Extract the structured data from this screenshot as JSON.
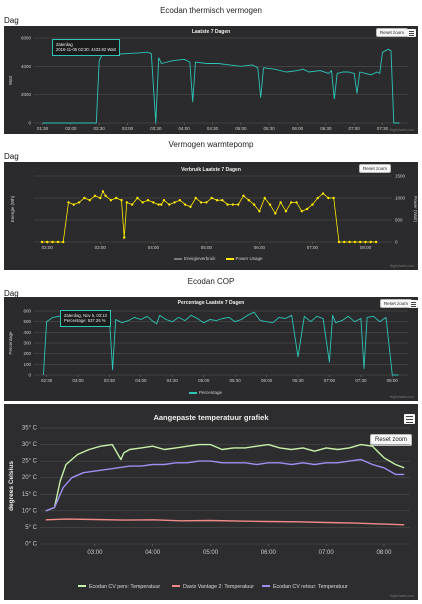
{
  "charts": {
    "c1": {
      "heading": "Ecodan thermisch vermogen",
      "dag": "Dag",
      "title": "Laatste 7 Dagen",
      "reset": "Reset zoom",
      "ylabel": "Watt",
      "tooltip_line1": "Zaterdag",
      "tooltip_line2": "2016-11-05 02:30: 4433.92 Watt",
      "credits": "Highcharts.com"
    },
    "c2": {
      "heading": "Vermogen warmtepomp",
      "dag": "Dag",
      "title": "Verbruik Laatste 7 Dagen",
      "reset": "Reset zoom",
      "ylabel_left": "Energie (Wh)",
      "ylabel_right": "Power (Watt)",
      "legend1": "Energieverbruik",
      "legend2": "Power Usage",
      "credits": "Highcharts.com"
    },
    "c3": {
      "heading": "Ecodan COP",
      "dag": "Dag",
      "title": "Percentage Laatste 7 Dagen",
      "reset": "Reset zoom",
      "ylabel": "Percentage",
      "tooltip_line1": "Zaterdag, Nov 5, 03:13",
      "tooltip_line2": "Percentage: 537.26 %",
      "legend1": "Percentage",
      "credits": "Highcharts.com"
    },
    "c4": {
      "title": "Aangepaste temperatuur grafiek",
      "reset": "Reset zoom",
      "ylabel": "degrees Celsius",
      "credits": "Highcharts.com"
    }
  },
  "chart_data": [
    {
      "type": "line",
      "title": "Laatste 7 Dagen",
      "ylabel": "Watt",
      "x_ticks": [
        "01:30",
        "02:00",
        "02:30",
        "03:00",
        "03:30",
        "04:00",
        "04:30",
        "05:00",
        "05:30",
        "06:00",
        "06:30",
        "07:00",
        "07:30"
      ],
      "y_ticks": [
        0,
        2000,
        4000,
        6000
      ],
      "ylim": [
        0,
        6000
      ],
      "color": "#2ec4b6",
      "series": [
        {
          "x": [
            1.5,
            2.45,
            2.5,
            2.55,
            3.0,
            3.2,
            3.35,
            3.42,
            3.5,
            3.55,
            3.6,
            3.8,
            4.0,
            4.1,
            4.15,
            4.2,
            4.4,
            4.6,
            4.8,
            5.0,
            5.2,
            5.3,
            5.35,
            5.4,
            5.6,
            5.8,
            6.0,
            6.1,
            6.2,
            6.4,
            6.55,
            6.6,
            6.65,
            6.7,
            6.8,
            6.9,
            7.0,
            7.05,
            7.1,
            7.2,
            7.3,
            7.4,
            7.45,
            7.5,
            7.6,
            7.65,
            7.7,
            7.8
          ],
          "values": [
            0,
            0,
            4400,
            4800,
            4900,
            4950,
            5000,
            4900,
            0,
            4600,
            4200,
            4400,
            4500,
            4300,
            1500,
            4300,
            4200,
            4200,
            4100,
            4000,
            4100,
            3900,
            1800,
            3900,
            3800,
            3600,
            3700,
            3800,
            3600,
            3700,
            3500,
            3700,
            1700,
            3500,
            3600,
            3600,
            3500,
            2100,
            3600,
            3500,
            3400,
            3600,
            3500,
            5000,
            5200,
            5100,
            0,
            0
          ]
        }
      ]
    },
    {
      "type": "line",
      "title": "Verbruik Laatste 7 Dagen",
      "ylabel_left": "Energie (Wh)",
      "ylabel_right": "Power (Watt)",
      "x_ticks": [
        "02:00",
        "03:00",
        "04:00",
        "05:00",
        "06:00",
        "07:00",
        "08:00"
      ],
      "y_ticks_right": [
        0,
        500,
        1000,
        1500
      ],
      "ylim": [
        0,
        1500
      ],
      "color": "#ffeb00",
      "series": [
        {
          "name": "Power Usage",
          "x": [
            1.9,
            2.0,
            2.1,
            2.2,
            2.3,
            2.4,
            2.5,
            2.6,
            2.7,
            2.8,
            2.9,
            3.0,
            3.05,
            3.1,
            3.2,
            3.3,
            3.4,
            3.45,
            3.5,
            3.6,
            3.7,
            3.8,
            3.9,
            4.0,
            4.1,
            4.15,
            4.2,
            4.3,
            4.4,
            4.5,
            4.6,
            4.7,
            4.8,
            4.9,
            5.0,
            5.1,
            5.2,
            5.3,
            5.4,
            5.5,
            5.6,
            5.7,
            5.8,
            5.9,
            6.0,
            6.1,
            6.2,
            6.3,
            6.4,
            6.5,
            6.6,
            6.7,
            6.8,
            6.9,
            7.0,
            7.1,
            7.2,
            7.3,
            7.4,
            7.5,
            7.6,
            7.7,
            7.8,
            7.9,
            8.0,
            8.1,
            8.2
          ],
          "values": [
            0,
            0,
            0,
            0,
            0,
            900,
            850,
            900,
            1000,
            950,
            1050,
            1000,
            1150,
            1050,
            950,
            1000,
            950,
            100,
            900,
            850,
            1000,
            900,
            950,
            900,
            850,
            850,
            950,
            850,
            900,
            950,
            850,
            800,
            1000,
            900,
            900,
            1000,
            950,
            950,
            850,
            850,
            850,
            1050,
            950,
            850,
            700,
            1000,
            850,
            650,
            900,
            700,
            900,
            900,
            700,
            750,
            850,
            1000,
            1100,
            1000,
            1000,
            0,
            0,
            0,
            0,
            0,
            0,
            0,
            0
          ]
        }
      ]
    },
    {
      "type": "line",
      "title": "Percentage Laatste 7 Dagen",
      "ylabel": "Percentage",
      "x_ticks": [
        "02:30",
        "03:00",
        "03:30",
        "04:00",
        "04:30",
        "05:00",
        "05:30",
        "06:00",
        "06:30",
        "07:00",
        "07:30",
        "08:00"
      ],
      "y_ticks": [
        0,
        100,
        200,
        300,
        400,
        500,
        600
      ],
      "ylim": [
        0,
        600
      ],
      "color": "#2ec4b6",
      "series": [
        {
          "name": "Percentage",
          "x": [
            2.45,
            2.5,
            2.6,
            2.7,
            2.8,
            2.9,
            3.0,
            3.1,
            3.2,
            3.25,
            3.3,
            3.4,
            3.5,
            3.55,
            3.6,
            3.7,
            3.8,
            3.9,
            4.0,
            4.1,
            4.2,
            4.25,
            4.3,
            4.4,
            4.5,
            4.6,
            4.7,
            4.8,
            4.9,
            5.0,
            5.1,
            5.2,
            5.3,
            5.4,
            5.5,
            5.6,
            5.7,
            5.8,
            5.9,
            6.0,
            6.1,
            6.2,
            6.3,
            6.4,
            6.5,
            6.6,
            6.7,
            6.8,
            6.9,
            7.0,
            7.05,
            7.1,
            7.2,
            7.3,
            7.4,
            7.5,
            7.55,
            7.6,
            7.7,
            7.8,
            7.9,
            8.0,
            8.1
          ],
          "values": [
            0,
            500,
            540,
            550,
            560,
            560,
            540,
            550,
            520,
            480,
            560,
            530,
            540,
            50,
            520,
            490,
            510,
            540,
            520,
            550,
            500,
            480,
            560,
            520,
            500,
            540,
            510,
            560,
            530,
            490,
            520,
            510,
            530,
            540,
            500,
            520,
            560,
            590,
            510,
            500,
            490,
            540,
            530,
            560,
            170,
            550,
            500,
            550,
            530,
            120,
            560,
            490,
            510,
            550,
            500,
            530,
            60,
            540,
            550,
            500,
            540,
            0,
            0
          ]
        }
      ]
    },
    {
      "type": "line",
      "title": "Aangepaste temperatuur grafiek",
      "ylabel": "degrees Celsius",
      "x_ticks": [
        "03:00",
        "04:00",
        "05:00",
        "06:00",
        "07:00",
        "08:00"
      ],
      "y_ticks": [
        "0° C",
        "5° C",
        "10° C",
        "15° C",
        "20° C",
        "25° C",
        "30° C",
        "35° C"
      ],
      "ylim": [
        0,
        35
      ],
      "series": [
        {
          "name": "Ecodan CV pers: Temperatuur",
          "color": "#c8f0a8",
          "x": [
            2.15,
            2.3,
            2.4,
            2.5,
            2.7,
            2.9,
            3.1,
            3.3,
            3.45,
            3.5,
            3.6,
            3.8,
            4.0,
            4.2,
            4.4,
            4.6,
            4.8,
            5.0,
            5.2,
            5.4,
            5.6,
            5.8,
            6.0,
            6.2,
            6.4,
            6.6,
            6.8,
            7.0,
            7.2,
            7.4,
            7.6,
            7.8,
            8.0,
            8.2,
            8.35
          ],
          "values": [
            10,
            11,
            19,
            24,
            27,
            28.5,
            29.5,
            30,
            25.5,
            27.5,
            28.5,
            29,
            29.5,
            28.5,
            29,
            29.5,
            30,
            30,
            28.5,
            29,
            29,
            29.5,
            30,
            29,
            28.5,
            29,
            28,
            29,
            28.5,
            29,
            30,
            29.5,
            26,
            24,
            23
          ]
        },
        {
          "name": "Davis Vantage 2: Temperatuur",
          "color": "#f08a8a",
          "x": [
            2.15,
            2.5,
            3.0,
            3.5,
            4.0,
            4.5,
            5.0,
            5.5,
            6.0,
            6.5,
            7.0,
            7.5,
            8.0,
            8.35
          ],
          "values": [
            7.3,
            7.5,
            7.4,
            7.2,
            7.3,
            7.0,
            7.1,
            6.9,
            6.8,
            6.7,
            6.5,
            6.3,
            6.0,
            5.8
          ]
        },
        {
          "name": "Ecodan CV retour: Temperatuur",
          "color": "#9c8ff0",
          "x": [
            2.15,
            2.3,
            2.45,
            2.6,
            2.8,
            3.0,
            3.2,
            3.4,
            3.6,
            3.8,
            4.0,
            4.2,
            4.4,
            4.6,
            4.8,
            5.0,
            5.2,
            5.4,
            5.6,
            5.8,
            6.0,
            6.2,
            6.4,
            6.6,
            6.8,
            7.0,
            7.2,
            7.4,
            7.6,
            7.8,
            8.0,
            8.2,
            8.35
          ],
          "values": [
            10,
            11,
            17,
            20,
            21.5,
            22,
            22.5,
            23,
            23.5,
            23.5,
            24,
            24,
            24.5,
            24.5,
            25,
            25,
            24.5,
            24.5,
            24.5,
            24,
            24.5,
            24.5,
            24,
            24.5,
            24,
            24.5,
            24.5,
            25,
            25.5,
            24,
            23,
            21,
            21
          ]
        }
      ]
    }
  ]
}
